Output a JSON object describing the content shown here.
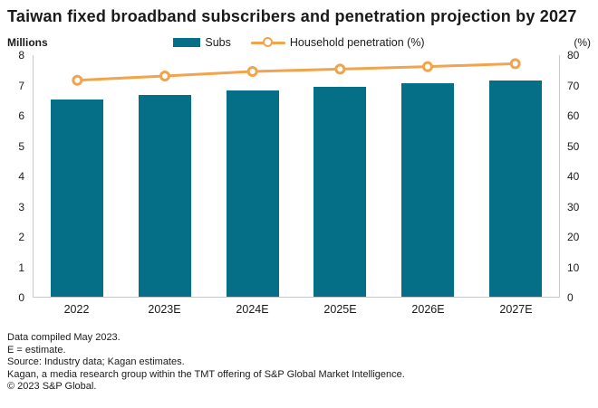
{
  "title": "Taiwan fixed broadband subscribers and penetration projection by 2027",
  "legend": {
    "subs_label": "Subs",
    "penetration_label": "Household penetration (%)"
  },
  "colors": {
    "bar_teal": "#056f88",
    "line_orange": "#f2a44c",
    "axis_line_gray": "#c9c9c9",
    "text": "#1a1a1a"
  },
  "chart_data": {
    "type": "bar+line",
    "categories": [
      "2022",
      "2023E",
      "2024E",
      "2025E",
      "2026E",
      "2027E"
    ],
    "series": [
      {
        "name": "Subs",
        "type": "bar",
        "axis": "left",
        "color": "#056f88",
        "values": [
          6.53,
          6.67,
          6.82,
          6.96,
          7.06,
          7.17
        ]
      },
      {
        "name": "Household penetration (%)",
        "type": "line",
        "axis": "right",
        "color": "#f2a44c",
        "values": [
          71.7,
          73.1,
          74.6,
          75.4,
          76.2,
          77.2
        ]
      }
    ],
    "left_axis": {
      "label": "Millions",
      "min": 0,
      "max": 8,
      "ticks": [
        0,
        1,
        2,
        3,
        4,
        5,
        6,
        7,
        8
      ]
    },
    "right_axis": {
      "label": "(%)",
      "min": 0,
      "max": 80,
      "ticks": [
        0,
        10,
        20,
        30,
        40,
        50,
        60,
        70,
        80
      ]
    },
    "grid": false,
    "legend_position": "top"
  },
  "footer": {
    "lines": [
      "Data compiled May 2023.",
      "E = estimate.",
      "Source: Industry data; Kagan estimates.",
      "Kagan, a media research group within the TMT offering of S&P Global Market Intelligence.",
      "© 2023 S&P Global."
    ]
  }
}
